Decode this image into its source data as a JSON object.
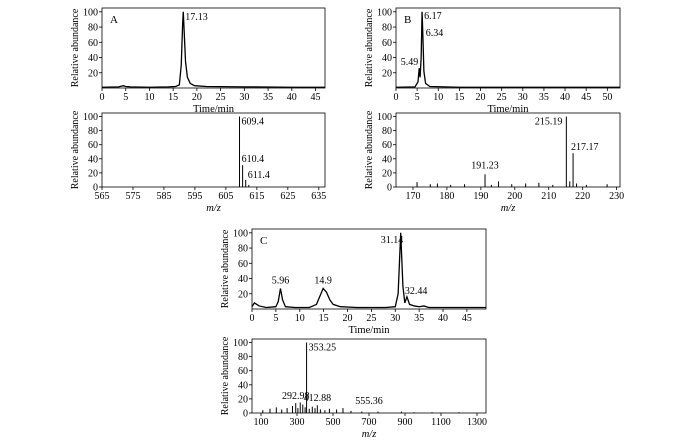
{
  "chart_data": [
    {
      "id": "A-tic",
      "type": "line",
      "panel_label": "A",
      "xlabel": "Time/min",
      "ylabel": "Relative abundance",
      "xlim": [
        0,
        47
      ],
      "ylim": [
        0,
        105
      ],
      "xticks": [
        0,
        5,
        10,
        15,
        20,
        25,
        30,
        35,
        40,
        45
      ],
      "yticks": [
        20,
        40,
        60,
        80,
        100
      ],
      "baseline_points": [
        [
          0,
          1
        ],
        [
          3.5,
          1.5
        ],
        [
          4.5,
          3
        ],
        [
          5,
          2
        ],
        [
          6,
          1.5
        ],
        [
          10,
          1
        ],
        [
          14,
          1.5
        ],
        [
          15.5,
          2
        ],
        [
          16.3,
          4
        ],
        [
          16.7,
          30
        ],
        [
          17.0,
          85
        ],
        [
          17.13,
          100
        ],
        [
          17.35,
          70
        ],
        [
          17.6,
          35
        ],
        [
          18.0,
          14
        ],
        [
          18.6,
          6
        ],
        [
          19.5,
          3
        ],
        [
          22,
          2
        ],
        [
          30,
          1.5
        ],
        [
          40,
          1
        ],
        [
          47,
          1
        ]
      ],
      "peak_labels": [
        {
          "x": 17.13,
          "y": 100,
          "text": "17.13"
        }
      ]
    },
    {
      "id": "A-ms",
      "type": "bar",
      "xlabel": "m/z",
      "ylabel": "Relative abundance",
      "xlim": [
        565,
        637
      ],
      "ylim": [
        0,
        105
      ],
      "xticks": [
        565,
        575,
        585,
        595,
        605,
        615,
        625,
        635
      ],
      "yticks": [
        0,
        20,
        40,
        60,
        80,
        100
      ],
      "peaks": [
        [
          609.4,
          100
        ],
        [
          610.4,
          31
        ],
        [
          611.4,
          10
        ],
        [
          612.4,
          3
        ]
      ],
      "peak_labels": [
        {
          "x": 609.4,
          "y": 100,
          "text": "609.4"
        },
        {
          "x": 610.4,
          "y": 31,
          "text": "610.4"
        },
        {
          "x": 611.4,
          "y": 10,
          "text": "611.4"
        }
      ]
    },
    {
      "id": "B-tic",
      "type": "line",
      "panel_label": "B",
      "xlabel": "Time/min",
      "ylabel": "Relative abundance",
      "xlim": [
        0,
        53
      ],
      "ylim": [
        0,
        105
      ],
      "xticks": [
        0,
        5,
        10,
        15,
        20,
        25,
        30,
        35,
        40,
        45,
        50
      ],
      "yticks": [
        20,
        40,
        60,
        80,
        100
      ],
      "baseline_points": [
        [
          0,
          1
        ],
        [
          4.5,
          1.5
        ],
        [
          5.2,
          8
        ],
        [
          5.49,
          26
        ],
        [
          5.7,
          14
        ],
        [
          5.95,
          40
        ],
        [
          6.17,
          100
        ],
        [
          6.34,
          72
        ],
        [
          6.6,
          22
        ],
        [
          7.0,
          6
        ],
        [
          8,
          2
        ],
        [
          15,
          1
        ],
        [
          53,
          1
        ]
      ],
      "peak_labels": [
        {
          "x": 5.49,
          "y": 26,
          "text": "5.49"
        },
        {
          "x": 6.17,
          "y": 100,
          "text": "6.17"
        },
        {
          "x": 6.34,
          "y": 72,
          "text": "6.34"
        }
      ]
    },
    {
      "id": "B-ms",
      "type": "bar",
      "xlabel": "m/z",
      "ylabel": "Relative abundance",
      "xlim": [
        165,
        231
      ],
      "ylim": [
        0,
        105
      ],
      "xticks": [
        170,
        180,
        190,
        200,
        210,
        220,
        230
      ],
      "yticks": [
        0,
        20,
        40,
        60,
        80,
        100
      ],
      "peaks": [
        [
          171.2,
          7
        ],
        [
          175.1,
          4
        ],
        [
          177.2,
          5
        ],
        [
          181.1,
          3
        ],
        [
          185.2,
          4
        ],
        [
          191.23,
          18
        ],
        [
          193.1,
          3
        ],
        [
          195.2,
          8
        ],
        [
          199.1,
          4
        ],
        [
          203.2,
          5
        ],
        [
          207.1,
          6
        ],
        [
          211.2,
          3
        ],
        [
          215.19,
          100
        ],
        [
          216.2,
          8
        ],
        [
          217.17,
          48
        ],
        [
          218.2,
          5
        ],
        [
          221.1,
          3
        ],
        [
          227.2,
          4
        ]
      ],
      "peak_labels": [
        {
          "x": 191.23,
          "y": 18,
          "text": "191.23"
        },
        {
          "x": 215.19,
          "y": 100,
          "text": "215.19"
        },
        {
          "x": 217.17,
          "y": 48,
          "text": "217.17"
        }
      ]
    },
    {
      "id": "C-tic",
      "type": "line",
      "panel_label": "C",
      "xlabel": "Time/min",
      "ylabel": "Relative abundance",
      "xlim": [
        0,
        49
      ],
      "ylim": [
        0,
        105
      ],
      "xticks": [
        0,
        5,
        10,
        15,
        20,
        25,
        30,
        35,
        40,
        45
      ],
      "yticks": [
        20,
        40,
        60,
        80,
        100
      ],
      "baseline_points": [
        [
          0,
          3
        ],
        [
          0.5,
          8
        ],
        [
          1.5,
          4
        ],
        [
          3,
          2
        ],
        [
          5,
          3
        ],
        [
          5.5,
          10
        ],
        [
          5.96,
          27
        ],
        [
          6.4,
          12
        ],
        [
          7,
          3
        ],
        [
          9,
          2
        ],
        [
          12,
          2
        ],
        [
          13.5,
          6
        ],
        [
          14.3,
          18
        ],
        [
          14.9,
          27
        ],
        [
          15.6,
          22
        ],
        [
          16.3,
          12
        ],
        [
          17,
          6
        ],
        [
          18.5,
          3
        ],
        [
          22,
          2
        ],
        [
          28,
          2
        ],
        [
          30,
          3
        ],
        [
          30.6,
          20
        ],
        [
          31.14,
          100
        ],
        [
          31.6,
          30
        ],
        [
          32.0,
          8
        ],
        [
          32.44,
          16
        ],
        [
          33,
          6
        ],
        [
          34,
          4
        ],
        [
          35,
          3
        ],
        [
          36,
          4
        ],
        [
          37,
          2
        ],
        [
          40,
          2
        ],
        [
          49,
          2
        ]
      ],
      "peak_labels": [
        {
          "x": 5.96,
          "y": 27,
          "text": "5.96"
        },
        {
          "x": 14.9,
          "y": 27,
          "text": "14.9"
        },
        {
          "x": 31.14,
          "y": 100,
          "text": "31.14"
        },
        {
          "x": 32.44,
          "y": 16,
          "text": "32.44"
        }
      ]
    },
    {
      "id": "C-ms",
      "type": "bar",
      "xlabel": "m/z",
      "ylabel": "Relative abundance",
      "xlim": [
        50,
        1350
      ],
      "ylim": [
        0,
        105
      ],
      "xticks": [
        100,
        300,
        500,
        700,
        900,
        1100,
        1300
      ],
      "yticks": [
        0,
        20,
        40,
        60,
        80,
        100
      ],
      "peaks": [
        [
          110,
          4
        ],
        [
          150,
          6
        ],
        [
          185,
          8
        ],
        [
          215,
          5
        ],
        [
          245,
          7
        ],
        [
          275,
          10
        ],
        [
          292.98,
          14
        ],
        [
          305,
          7
        ],
        [
          318,
          15
        ],
        [
          332,
          12
        ],
        [
          345,
          8
        ],
        [
          353.25,
          100
        ],
        [
          368,
          6
        ],
        [
          385,
          9
        ],
        [
          400,
          7
        ],
        [
          412.88,
          11
        ],
        [
          430,
          5
        ],
        [
          455,
          4
        ],
        [
          480,
          6
        ],
        [
          520,
          5
        ],
        [
          555.36,
          7
        ],
        [
          600,
          3
        ],
        [
          660,
          2
        ],
        [
          750,
          2
        ],
        [
          880,
          2
        ],
        [
          950,
          1
        ],
        [
          1050,
          1
        ],
        [
          1200,
          1
        ]
      ],
      "peak_labels": [
        {
          "x": 292.98,
          "y": 14,
          "text": "292.98"
        },
        {
          "x": 353.25,
          "y": 100,
          "text": "353.25"
        },
        {
          "x": 412.88,
          "y": 11,
          "text": "412.88"
        },
        {
          "x": 555.36,
          "y": 7,
          "text": "555.36"
        }
      ]
    }
  ]
}
